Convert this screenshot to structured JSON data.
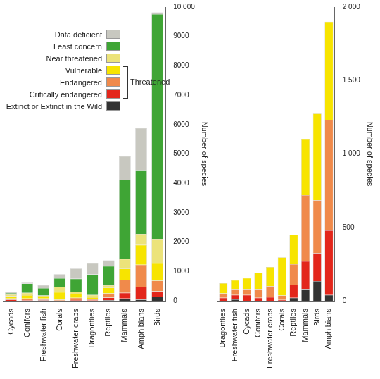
{
  "chart_data": [
    {
      "type": "bar",
      "stacked": true,
      "grid": false,
      "legend": "top-left",
      "y_label": "Number of species",
      "categories": [
        "Cycads",
        "Conifers",
        "Freshwater fish",
        "Corals",
        "Freshwater crabs",
        "Dragonflies",
        "Reptiles",
        "Mammals",
        "Amphibians",
        "Birds"
      ],
      "ylim": [
        0,
        10000
      ],
      "yticks": [
        0,
        1000,
        2000,
        3000,
        4000,
        5000,
        6000,
        7000,
        8000,
        9000,
        {
          "value": 10000,
          "label": "10 000"
        }
      ],
      "annotations": [
        {
          "text": "Threatened",
          "series": [
            "Vulnerable",
            "Endangered",
            "Critically endangered"
          ]
        }
      ],
      "series": [
        {
          "name": "Extinct or Extinct in the Wild",
          "color": "#333333",
          "values": [
            0,
            0,
            10,
            0,
            0,
            0,
            20,
            80,
            40,
            135
          ]
        },
        {
          "name": "Critically endangered",
          "color": "#e3261b",
          "values": [
            40,
            20,
            30,
            6,
            25,
            20,
            90,
            190,
            440,
            190
          ]
        },
        {
          "name": "Endangered",
          "color": "#f08a4b",
          "values": [
            40,
            60,
            40,
            30,
            75,
            30,
            140,
            450,
            750,
            360
          ]
        },
        {
          "name": "Vulnerable",
          "color": "#f7e400",
          "values": [
            75,
            110,
            60,
            260,
            130,
            70,
            200,
            380,
            670,
            590
          ]
        },
        {
          "name": "Near threatened",
          "color": "#ece37a",
          "values": [
            60,
            80,
            40,
            170,
            70,
            80,
            80,
            320,
            380,
            835
          ]
        },
        {
          "name": "Least concern",
          "color": "#3fa535",
          "values": [
            50,
            320,
            250,
            300,
            450,
            700,
            650,
            2700,
            2150,
            7650
          ]
        },
        {
          "name": "Data deficient",
          "color": "#c8c8c0",
          "values": [
            30,
            30,
            100,
            140,
            350,
            380,
            200,
            800,
            1450,
            60
          ]
        }
      ]
    },
    {
      "type": "bar",
      "stacked": true,
      "grid": false,
      "y_label": "Number of species",
      "categories": [
        "Dragonflies",
        "Freshwater fish",
        "Cycads",
        "Conifers",
        "Freshwater crabs",
        "Corals",
        "Reptiles",
        "Mammals",
        "Birds",
        "Amphibians"
      ],
      "ylim": [
        0,
        2000
      ],
      "yticks": [
        0,
        500,
        {
          "value": 1000,
          "label": "1 000"
        },
        {
          "value": 1500,
          "label": "1 500"
        },
        {
          "value": 2000,
          "label": "2 000"
        }
      ],
      "series": [
        {
          "name": "Extinct or Extinct in the Wild",
          "color": "#333333",
          "values": [
            0,
            10,
            0,
            0,
            0,
            0,
            20,
            80,
            135,
            40
          ]
        },
        {
          "name": "Critically endangered",
          "color": "#e3261b",
          "values": [
            20,
            30,
            40,
            20,
            25,
            6,
            90,
            190,
            190,
            440
          ]
        },
        {
          "name": "Endangered",
          "color": "#f08a4b",
          "values": [
            30,
            40,
            40,
            60,
            75,
            30,
            140,
            450,
            360,
            750
          ]
        },
        {
          "name": "Vulnerable",
          "color": "#f7e400",
          "values": [
            70,
            60,
            75,
            110,
            130,
            260,
            200,
            380,
            590,
            670
          ]
        }
      ]
    }
  ]
}
